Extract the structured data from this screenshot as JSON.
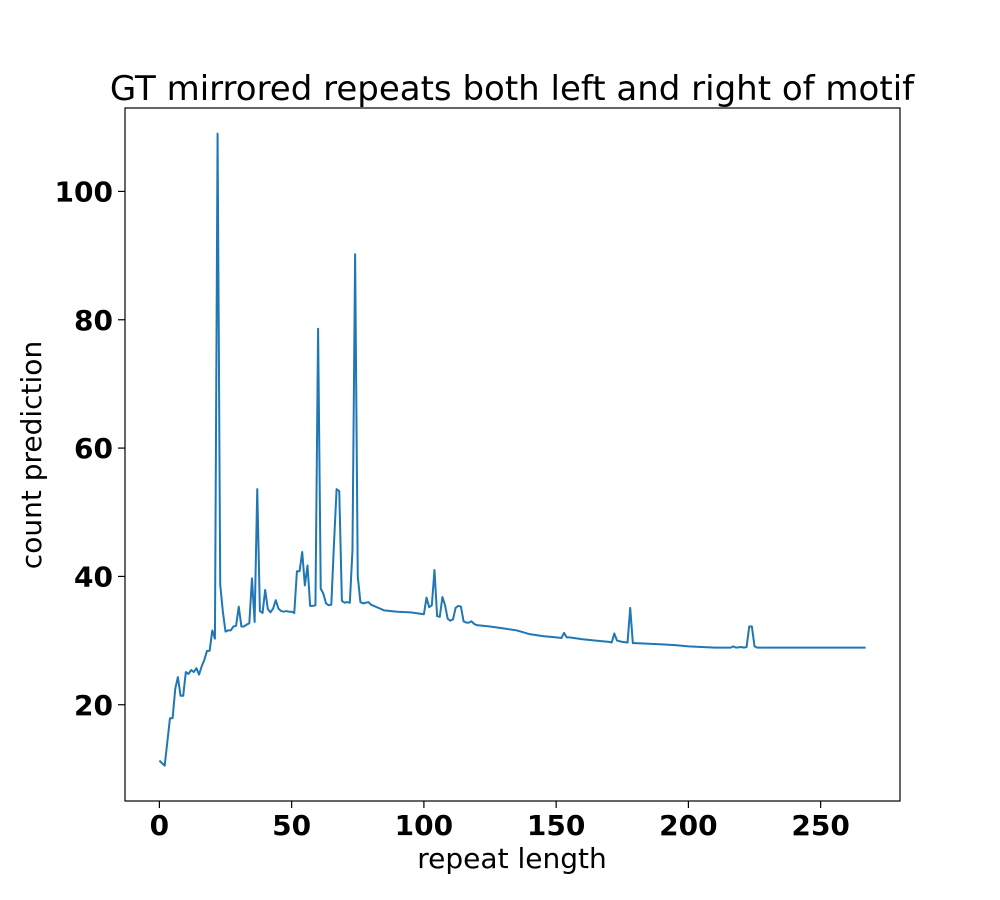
{
  "chart_data": {
    "type": "line",
    "title": "GT mirrored repeats both left and right of motif",
    "xlabel": "repeat length",
    "ylabel": "count prediction",
    "xlim": [
      -13,
      280
    ],
    "ylim": [
      5,
      113
    ],
    "xticks": [
      0,
      50,
      100,
      150,
      200,
      250
    ],
    "yticks": [
      20,
      40,
      60,
      80,
      100
    ],
    "grid": false,
    "legend": "none",
    "series": [
      {
        "color": "#1f77b4",
        "x": [
          0,
          2,
          4,
          5,
          6,
          7,
          8,
          9,
          10,
          11,
          12,
          13,
          14,
          15,
          16,
          17,
          18,
          19,
          20,
          21,
          22,
          23,
          24,
          25,
          26,
          27,
          28,
          29,
          30,
          31,
          32,
          33,
          34,
          35,
          36,
          37,
          38,
          39,
          40,
          41,
          42,
          43,
          44,
          45,
          46,
          47,
          48,
          49,
          50,
          51,
          52,
          53,
          54,
          55,
          56,
          57,
          58,
          59,
          60,
          61,
          62,
          63,
          64,
          65,
          66,
          67,
          68,
          69,
          70,
          71,
          72,
          73,
          74,
          75,
          76,
          77,
          78,
          79,
          80,
          85,
          90,
          95,
          100,
          101,
          102,
          103,
          104,
          105,
          106,
          107,
          108,
          109,
          110,
          111,
          112,
          113,
          114,
          115,
          116,
          117,
          118,
          119,
          120,
          125,
          130,
          135,
          140,
          145,
          150,
          152,
          153,
          154,
          155,
          160,
          165,
          170,
          171,
          172,
          173,
          175,
          177,
          178,
          179,
          180,
          185,
          190,
          195,
          200,
          205,
          210,
          215,
          216,
          217,
          218,
          220,
          221,
          222,
          223,
          224,
          225,
          226,
          230,
          240,
          250,
          260,
          267
        ],
        "y": [
          11.3,
          10.5,
          17.9,
          17.9,
          22.5,
          24.3,
          21.4,
          21.4,
          25.1,
          24.8,
          25.4,
          25.1,
          25.7,
          24.7,
          26.0,
          27.0,
          28.4,
          28.4,
          31.6,
          30.3,
          109.0,
          38.7,
          34.5,
          31.4,
          31.6,
          31.6,
          32.2,
          32.3,
          35.3,
          32.2,
          32.2,
          32.5,
          32.7,
          39.7,
          32.9,
          53.6,
          34.6,
          34.3,
          37.9,
          34.9,
          34.4,
          35.0,
          36.3,
          35.0,
          34.6,
          34.5,
          34.6,
          34.5,
          34.5,
          34.3,
          40.8,
          40.8,
          43.8,
          38.6,
          41.7,
          35.4,
          35.4,
          35.5,
          78.6,
          38.1,
          37.3,
          35.8,
          35.5,
          35.6,
          45.0,
          53.6,
          53.3,
          36.2,
          35.9,
          36.0,
          35.9,
          44.1,
          90.2,
          40.0,
          36.0,
          35.8,
          35.9,
          36.0,
          35.6,
          34.7,
          34.5,
          34.4,
          34.1,
          36.7,
          35.2,
          35.5,
          41.0,
          33.8,
          33.7,
          36.8,
          35.5,
          33.4,
          33.1,
          33.3,
          35.1,
          35.4,
          35.3,
          33.0,
          32.8,
          32.8,
          33.0,
          32.6,
          32.4,
          32.2,
          31.9,
          31.6,
          31.0,
          30.7,
          30.5,
          30.4,
          31.2,
          30.5,
          30.5,
          30.2,
          30.0,
          29.8,
          29.7,
          31.1,
          30.0,
          29.8,
          29.7,
          35.1,
          29.6,
          29.6,
          29.5,
          29.4,
          29.3,
          29.1,
          29.0,
          28.9,
          28.9,
          28.9,
          29.1,
          28.9,
          29.0,
          28.9,
          29.0,
          32.2,
          32.2,
          29.1,
          28.9,
          28.9,
          28.9,
          28.9,
          28.9,
          28.9
        ]
      }
    ]
  }
}
